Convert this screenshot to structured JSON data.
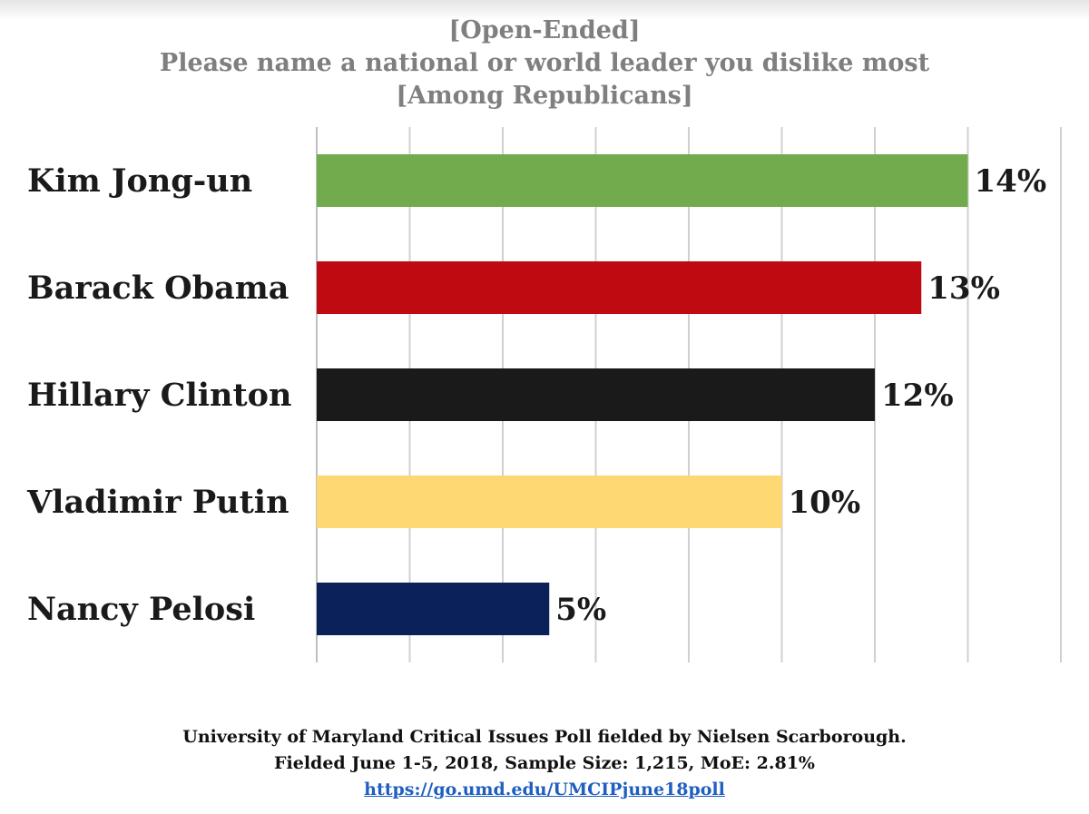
{
  "titles": {
    "line1": "[Open-Ended]",
    "line2": "Please name a national or world leader you dislike most",
    "line3": "[Among Republicans]"
  },
  "chart_data": {
    "type": "bar",
    "orientation": "horizontal",
    "categories": [
      "Kim Jong-un",
      "Barack Obama",
      "Hillary Clinton",
      "Vladimir Putin",
      "Nancy Pelosi"
    ],
    "values": [
      14,
      13,
      12,
      10,
      5
    ],
    "data_labels": [
      "14%",
      "13%",
      "12%",
      "10%",
      "5%"
    ],
    "colors": [
      "#72ab4d",
      "#c00a12",
      "#1a1a1a",
      "#fed872",
      "#0a215a"
    ],
    "xlim": [
      0,
      16
    ],
    "grid": true,
    "legend": "none"
  },
  "footer": {
    "line1": "University of Maryland Critical Issues Poll fielded by Nielsen Scarborough.",
    "line2": "Fielded June 1-5, 2018, Sample Size: 1,215, MoE: 2.81%",
    "link": "https://go.umd.edu/UMCIPjune18poll"
  }
}
